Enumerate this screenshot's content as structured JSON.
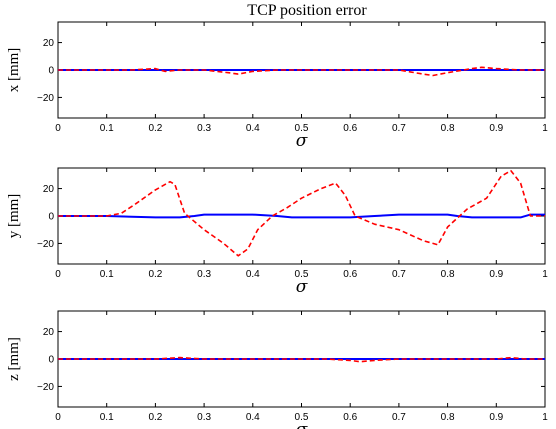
{
  "title": "TCP position error",
  "chart_data": [
    {
      "type": "line",
      "title": "TCP position error",
      "xlabel": "σ",
      "ylabel": "x [mm]",
      "xlim": [
        0,
        1
      ],
      "ylim": [
        -35,
        35
      ],
      "x_ticks": [
        0,
        0.1,
        0.2,
        0.3,
        0.4,
        0.5,
        0.6,
        0.7,
        0.8,
        0.9,
        1
      ],
      "x_tick_labels": [
        "0",
        "0.1",
        "0.2",
        "0.3",
        "0.4",
        "0.5",
        "0.6",
        "0.7",
        "0.8",
        "0.9",
        "1"
      ],
      "y_ticks": [
        20,
        0,
        -20
      ],
      "y_tick_labels": [
        "20",
        "0",
        "−20"
      ],
      "series": [
        {
          "color": "#0000ff",
          "style": "solid",
          "x": [
            0,
            0.1,
            0.2,
            0.3,
            0.4,
            0.5,
            0.6,
            0.7,
            0.8,
            0.9,
            1
          ],
          "y": [
            0,
            0,
            0,
            0,
            0,
            0,
            0,
            0,
            0,
            0,
            0
          ]
        },
        {
          "color": "#ff0000",
          "style": "dashed",
          "x": [
            0,
            0.05,
            0.1,
            0.15,
            0.2,
            0.22,
            0.25,
            0.3,
            0.35,
            0.37,
            0.4,
            0.45,
            0.5,
            0.55,
            0.6,
            0.65,
            0.7,
            0.75,
            0.77,
            0.8,
            0.85,
            0.87,
            0.9,
            0.95,
            1
          ],
          "y": [
            0,
            0,
            0,
            0,
            1,
            -1,
            0,
            0,
            -2,
            -3,
            -1,
            0,
            0,
            0,
            0,
            0,
            0,
            -3,
            -4,
            -2,
            1,
            2,
            1,
            0,
            0
          ]
        }
      ]
    },
    {
      "type": "line",
      "xlabel": "σ",
      "ylabel": "y [mm]",
      "xlim": [
        0,
        1
      ],
      "ylim": [
        -35,
        35
      ],
      "x_ticks": [
        0,
        0.1,
        0.2,
        0.3,
        0.4,
        0.5,
        0.6,
        0.7,
        0.8,
        0.9,
        1
      ],
      "x_tick_labels": [
        "0",
        "0.1",
        "0.2",
        "0.3",
        "0.4",
        "0.5",
        "0.6",
        "0.7",
        "0.8",
        "0.9",
        "1"
      ],
      "y_ticks": [
        20,
        0,
        -20
      ],
      "y_tick_labels": [
        "20",
        "0",
        "−20"
      ],
      "series": [
        {
          "color": "#0000ff",
          "style": "solid",
          "x": [
            0,
            0.1,
            0.2,
            0.25,
            0.28,
            0.3,
            0.4,
            0.45,
            0.48,
            0.55,
            0.6,
            0.65,
            0.7,
            0.75,
            0.8,
            0.82,
            0.85,
            0.9,
            0.95,
            0.97,
            1
          ],
          "y": [
            0,
            0,
            -1,
            -1,
            0,
            1,
            1,
            0,
            -1,
            -1,
            -1,
            0,
            1,
            1,
            1,
            0,
            -1,
            -1,
            -1,
            1,
            1
          ]
        },
        {
          "color": "#ff0000",
          "style": "dashed",
          "x": [
            0,
            0.05,
            0.1,
            0.13,
            0.16,
            0.2,
            0.23,
            0.24,
            0.26,
            0.3,
            0.34,
            0.37,
            0.39,
            0.41,
            0.44,
            0.47,
            0.5,
            0.54,
            0.57,
            0.59,
            0.61,
            0.65,
            0.7,
            0.75,
            0.78,
            0.8,
            0.84,
            0.88,
            0.91,
            0.93,
            0.95,
            0.97,
            1
          ],
          "y": [
            0,
            0,
            0,
            2,
            9,
            19,
            25,
            23,
            2,
            -10,
            -20,
            -29,
            -24,
            -10,
            0,
            6,
            13,
            20,
            24,
            15,
            0,
            -6,
            -10,
            -18,
            -21,
            -8,
            5,
            13,
            29,
            33,
            24,
            0,
            0
          ]
        }
      ]
    },
    {
      "type": "line",
      "xlabel": "σ",
      "ylabel": "z [mm]",
      "xlim": [
        0,
        1
      ],
      "ylim": [
        -35,
        35
      ],
      "x_ticks": [
        0,
        0.1,
        0.2,
        0.3,
        0.4,
        0.5,
        0.6,
        0.7,
        0.8,
        0.9,
        1
      ],
      "x_tick_labels": [
        "0",
        "0.1",
        "0.2",
        "0.3",
        "0.4",
        "0.5",
        "0.6",
        "0.7",
        "0.8",
        "0.9",
        "1"
      ],
      "y_ticks": [
        20,
        0,
        -20
      ],
      "y_tick_labels": [
        "20",
        "0",
        "−20"
      ],
      "series": [
        {
          "color": "#0000ff",
          "style": "solid",
          "x": [
            0,
            0.1,
            0.2,
            0.3,
            0.4,
            0.5,
            0.6,
            0.7,
            0.8,
            0.9,
            1
          ],
          "y": [
            0,
            0,
            0,
            0,
            0,
            0,
            0,
            0,
            0,
            0,
            0
          ]
        },
        {
          "color": "#ff0000",
          "style": "dashed",
          "x": [
            0,
            0.1,
            0.2,
            0.25,
            0.3,
            0.4,
            0.5,
            0.55,
            0.6,
            0.62,
            0.65,
            0.7,
            0.8,
            0.9,
            0.93,
            0.96,
            1
          ],
          "y": [
            0,
            0,
            0,
            1,
            0,
            0,
            0,
            0,
            -1,
            -2,
            -1,
            0,
            0,
            0,
            1,
            0,
            0
          ]
        }
      ]
    }
  ]
}
